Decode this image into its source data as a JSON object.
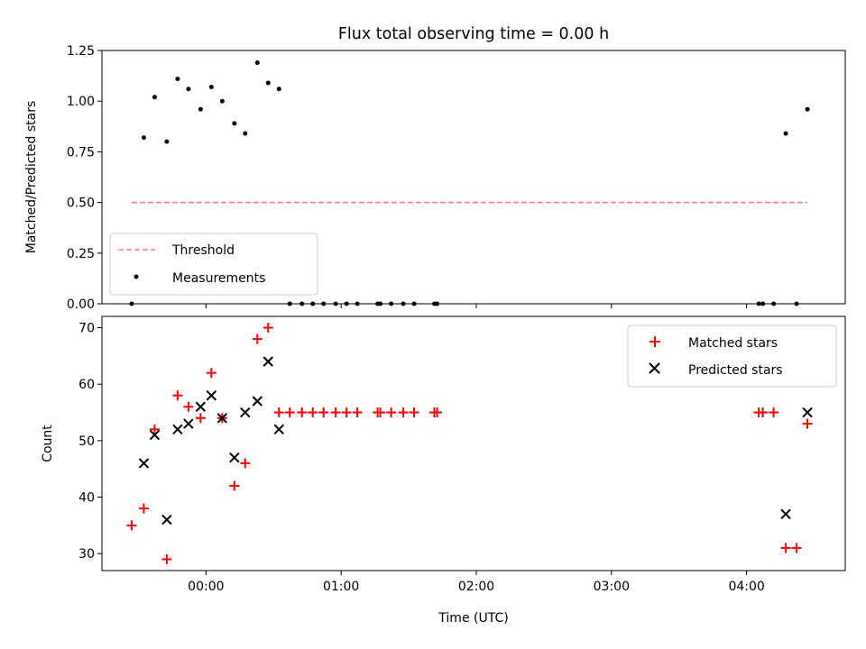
{
  "figure": {
    "title": "Flux total observing time = 0.00 h"
  },
  "chart_data": [
    {
      "type": "scatter",
      "title": "Flux total observing time = 0.00 h",
      "xlabel": "",
      "ylabel": "Matched/Predicted stars",
      "xlim_hours": [
        -0.77,
        4.73
      ],
      "ylim": [
        0,
        1.25
      ],
      "yticks": [
        0.0,
        0.25,
        0.5,
        0.75,
        1.0,
        1.25
      ],
      "ytick_labels": [
        "0.00",
        "0.25",
        "0.50",
        "0.75",
        "1.00",
        "1.25"
      ],
      "xticks_hours": [
        0,
        1,
        2,
        3,
        4
      ],
      "xtick_labels_visible": false,
      "legend_position": "lower-left",
      "threshold": {
        "name": "Threshold",
        "y": 0.5,
        "x_start": -0.55,
        "x_end": 4.45,
        "color": "#ff7f7f",
        "style": "dashed"
      },
      "series": [
        {
          "name": "Measurements",
          "marker": "dot",
          "color": "#000000",
          "x": [
            -0.55,
            -0.46,
            -0.38,
            -0.29,
            -0.21,
            -0.13,
            -0.04,
            0.04,
            0.12,
            0.21,
            0.29,
            0.38,
            0.46,
            0.54,
            0.62,
            0.71,
            0.79,
            0.87,
            0.96,
            1.04,
            1.12,
            1.27,
            1.29,
            1.37,
            1.46,
            1.54,
            1.69,
            1.71,
            4.09,
            4.12,
            4.2,
            4.29,
            4.37,
            4.45
          ],
          "y": [
            0.0,
            0.82,
            1.02,
            0.8,
            1.11,
            1.06,
            0.96,
            1.07,
            1.0,
            0.89,
            0.84,
            1.19,
            1.09,
            1.06,
            0.0,
            0.0,
            0.0,
            0.0,
            0.0,
            0.0,
            0.0,
            0.0,
            0.0,
            0.0,
            0.0,
            0.0,
            0.0,
            0.0,
            0.0,
            0.0,
            0.0,
            0.84,
            0.0,
            0.96
          ]
        }
      ]
    },
    {
      "type": "scatter",
      "title": "",
      "xlabel": "Time (UTC)",
      "ylabel": "Count",
      "xlim_hours": [
        -0.77,
        4.73
      ],
      "ylim": [
        27,
        72
      ],
      "yticks": [
        30,
        40,
        50,
        60,
        70
      ],
      "ytick_labels": [
        "30",
        "40",
        "50",
        "60",
        "70"
      ],
      "xticks_hours": [
        0,
        1,
        2,
        3,
        4
      ],
      "xtick_labels": [
        "00:00",
        "01:00",
        "02:00",
        "03:00",
        "04:00"
      ],
      "legend_position": "upper-right",
      "series": [
        {
          "name": "Matched stars",
          "marker": "plus",
          "color": "#ff0000",
          "x": [
            -0.55,
            -0.46,
            -0.38,
            -0.29,
            -0.21,
            -0.13,
            -0.04,
            0.04,
            0.12,
            0.21,
            0.29,
            0.38,
            0.46,
            0.54,
            0.62,
            0.71,
            0.79,
            0.87,
            0.96,
            1.04,
            1.12,
            1.27,
            1.29,
            1.37,
            1.46,
            1.54,
            1.69,
            1.71,
            4.09,
            4.12,
            4.2,
            4.29,
            4.37,
            4.45
          ],
          "y": [
            35,
            38,
            52,
            29,
            58,
            56,
            54,
            62,
            54,
            42,
            46,
            68,
            70,
            55,
            55,
            55,
            55,
            55,
            55,
            55,
            55,
            55,
            55,
            55,
            55,
            55,
            55,
            55,
            55,
            55,
            55,
            31,
            31,
            53
          ]
        },
        {
          "name": "Predicted stars",
          "marker": "x",
          "color": "#000000",
          "x": [
            -0.46,
            -0.38,
            -0.29,
            -0.21,
            -0.13,
            -0.04,
            0.04,
            0.12,
            0.21,
            0.29,
            0.38,
            0.46,
            0.54,
            4.29,
            4.45
          ],
          "y": [
            46,
            51,
            36,
            52,
            53,
            56,
            58,
            54,
            47,
            55,
            57,
            64,
            52,
            37,
            55
          ]
        }
      ]
    }
  ]
}
